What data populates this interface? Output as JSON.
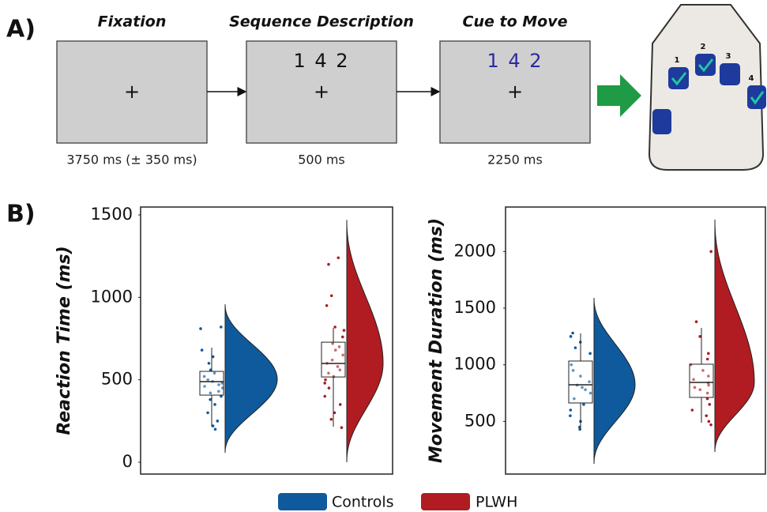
{
  "panel_a": {
    "label": "A)",
    "steps": [
      {
        "title": "Fixation",
        "screen": "+",
        "duration": "3750 ms (± 350 ms)"
      },
      {
        "title": "Sequence Description",
        "sequence": "1 4 2",
        "screen": "+",
        "duration": "500 ms"
      },
      {
        "title": "Cue to Move",
        "sequence": "1 4 2",
        "screen": "+",
        "duration": "2250 ms"
      }
    ],
    "keys": [
      "1",
      "2",
      "3",
      "4"
    ]
  },
  "panel_b_label": "B)",
  "chart_data": [
    {
      "type": "raincloud",
      "y_label": "Reaction Time (ms)",
      "ylim": [
        -72,
        1548
      ],
      "yticks": [
        0,
        500,
        1000,
        1500
      ],
      "series": [
        {
          "name": "Controls",
          "color": "#0e5a9c",
          "box": {
            "whisker_low": 215,
            "q1": 407,
            "median": 489,
            "q3": 551,
            "whisker_high": 695
          },
          "violin": {
            "min": 57,
            "peak": 503,
            "max": 958
          },
          "points": [
            810,
            820,
            680,
            640,
            600,
            560,
            540,
            520,
            500,
            490,
            480,
            470,
            460,
            450,
            430,
            420,
            400,
            380,
            350,
            300,
            250,
            220,
            200
          ]
        },
        {
          "name": "PLWH",
          "color": "#b01c22",
          "box": {
            "whisker_low": 215,
            "q1": 517,
            "median": 599,
            "q3": 728,
            "whisker_high": 814
          },
          "violin": {
            "min": 0,
            "peak": 599,
            "max": 1470
          },
          "points": [
            1240,
            1200,
            1010,
            950,
            820,
            800,
            760,
            720,
            700,
            680,
            650,
            620,
            600,
            580,
            560,
            540,
            520,
            500,
            480,
            450,
            400,
            350,
            300,
            260,
            210
          ]
        }
      ]
    },
    {
      "type": "raincloud",
      "y_label": "Movement Duration (ms)",
      "ylim": [
        35,
        2393
      ],
      "yticks": [
        500,
        1000,
        1500,
        2000
      ],
      "series": [
        {
          "color": "#0e5a9c",
          "box": {
            "whisker_low": 433,
            "q1": 663,
            "median": 823,
            "q3": 1033,
            "whisker_high": 1277
          },
          "violin": {
            "min": 126,
            "peak": 823,
            "max": 1591
          },
          "points": [
            1280,
            1250,
            1200,
            1150,
            1100,
            1000,
            950,
            900,
            850,
            820,
            800,
            780,
            750,
            700,
            650,
            600,
            550,
            500,
            450,
            430
          ]
        },
        {
          "color": "#b01c22",
          "box": {
            "whisker_low": 488,
            "q1": 712,
            "median": 844,
            "q3": 1005,
            "whisker_high": 1326
          },
          "violin": {
            "min": 230,
            "peak": 844,
            "max": 2282
          },
          "points": [
            2000,
            1380,
            1250,
            1100,
            1050,
            1000,
            950,
            900,
            870,
            840,
            820,
            800,
            780,
            750,
            700,
            650,
            600,
            550,
            500,
            470
          ]
        }
      ]
    }
  ]
}
